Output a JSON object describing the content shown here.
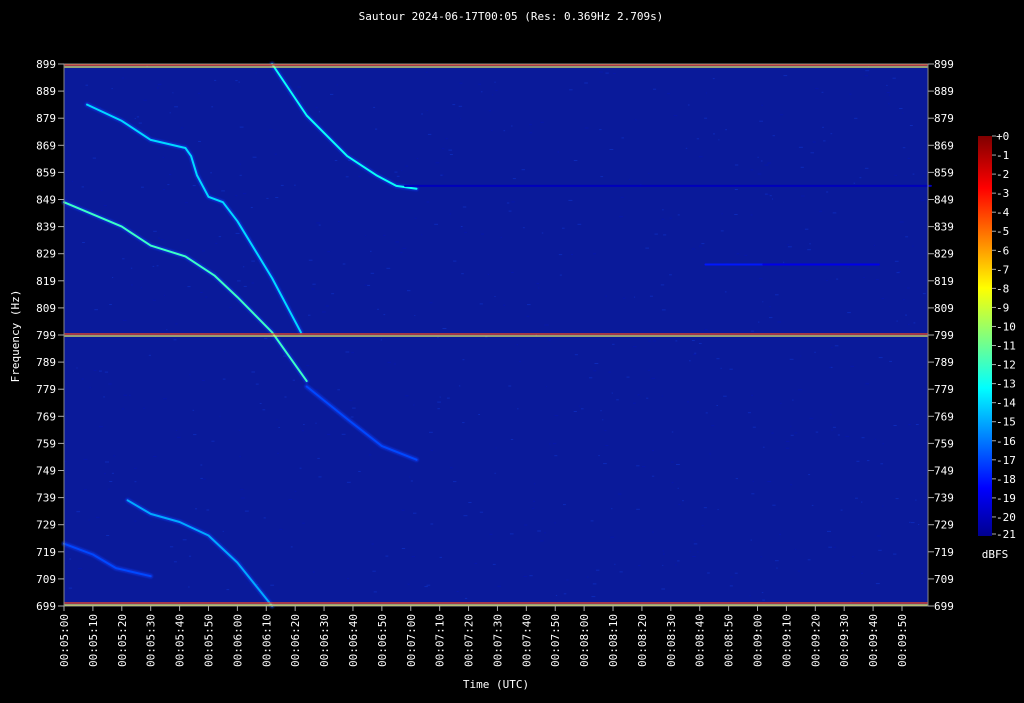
{
  "chart_data": {
    "type": "heatmap",
    "title": "Sautour 2024-06-17T00:05 (Res: 0.369Hz 2.709s)",
    "xlabel": "Time (UTC)",
    "ylabel": "Frequency (Hz)",
    "xlim_seconds_after_0005": [
      0,
      299
    ],
    "ylim": [
      699,
      899
    ],
    "x_ticks": [
      "00:05:00",
      "00:05:10",
      "00:05:20",
      "00:05:30",
      "00:05:40",
      "00:05:50",
      "00:06:00",
      "00:06:10",
      "00:06:20",
      "00:06:30",
      "00:06:40",
      "00:06:50",
      "00:07:00",
      "00:07:10",
      "00:07:20",
      "00:07:30",
      "00:07:40",
      "00:07:50",
      "00:08:00",
      "00:08:10",
      "00:08:20",
      "00:08:30",
      "00:08:40",
      "00:08:50",
      "00:09:00",
      "00:09:10",
      "00:09:20",
      "00:09:30",
      "00:09:40",
      "00:09:50"
    ],
    "y_ticks": [
      899,
      889,
      879,
      869,
      859,
      849,
      839,
      829,
      819,
      809,
      799,
      789,
      779,
      769,
      759,
      749,
      739,
      729,
      719,
      709,
      699
    ],
    "colorbar": {
      "label": "dBFS",
      "min": -21,
      "max": 0,
      "ticks": [
        "+0",
        "-1",
        "-2",
        "-3",
        "-4",
        "-5",
        "-6",
        "-7",
        "-8",
        "-9",
        "-10",
        "-11",
        "-12",
        "-13",
        "-14",
        "-15",
        "-16",
        "-17",
        "-18",
        "-19",
        "-20",
        "-21"
      ]
    },
    "background_color": "#0a1a9a",
    "steady_carriers_hz": [
      899,
      799,
      699
    ],
    "traces": [
      {
        "points": [
          [
            8,
            884
          ],
          [
            20,
            878
          ],
          [
            30,
            871
          ],
          [
            42,
            868
          ],
          [
            44,
            865
          ],
          [
            46,
            858
          ],
          [
            50,
            850
          ],
          [
            55,
            848
          ],
          [
            60,
            841
          ],
          [
            72,
            820
          ],
          [
            82,
            800
          ]
        ],
        "level_dbfs": -14
      },
      {
        "points": [
          [
            0,
            848
          ],
          [
            20,
            839
          ],
          [
            30,
            832
          ],
          [
            42,
            828
          ],
          [
            52,
            821
          ],
          [
            60,
            813
          ],
          [
            72,
            800
          ],
          [
            84,
            782
          ]
        ],
        "level_dbfs": -12
      },
      {
        "points": [
          [
            72,
            899
          ],
          [
            84,
            880
          ],
          [
            98,
            865
          ],
          [
            108,
            858
          ],
          [
            115,
            854
          ],
          [
            122,
            853
          ]
        ],
        "level_dbfs": -13
      },
      {
        "points": [
          [
            84,
            780
          ],
          [
            98,
            768
          ],
          [
            110,
            758
          ],
          [
            122,
            753
          ]
        ],
        "level_dbfs": -17
      },
      {
        "points": [
          [
            22,
            738
          ],
          [
            30,
            733
          ],
          [
            40,
            730
          ],
          [
            50,
            725
          ],
          [
            60,
            715
          ],
          [
            72,
            699
          ]
        ],
        "level_dbfs": -15
      },
      {
        "points": [
          [
            0,
            722
          ],
          [
            10,
            718
          ],
          [
            18,
            713
          ],
          [
            30,
            710
          ]
        ],
        "level_dbfs": -17
      },
      {
        "points": [
          [
            222,
            825
          ],
          [
            262,
            825
          ]
        ],
        "level_dbfs": -18
      },
      {
        "points": [
          [
            242,
            825
          ],
          [
            282,
            825
          ]
        ],
        "level_dbfs": -19
      },
      {
        "points": [
          [
            118,
            854
          ],
          [
            300,
            854
          ]
        ],
        "level_dbfs": -20
      }
    ]
  }
}
